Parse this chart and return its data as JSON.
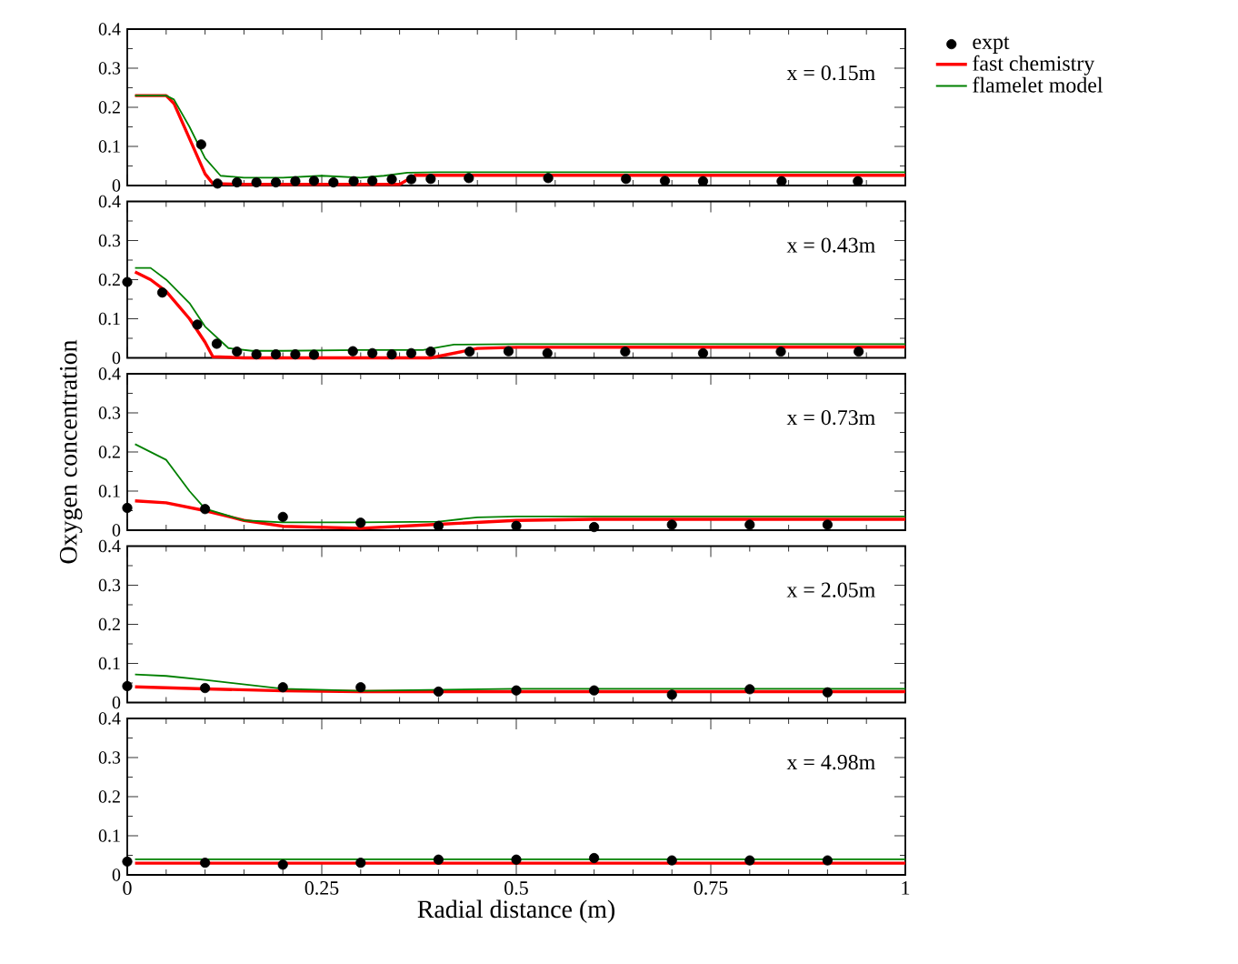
{
  "chart_data": [
    {
      "type": "line",
      "annotations": [
        "x = 0.15m"
      ],
      "xlim": [
        0,
        1
      ],
      "ylim": [
        0,
        0.4
      ],
      "xticks": [
        0,
        0.25,
        0.5,
        0.75,
        1
      ],
      "yticks": [
        0,
        0.1,
        0.2,
        0.3,
        0.4
      ],
      "tick_labels": "y",
      "legend": "top right",
      "series": [
        {
          "name": "expt",
          "type": "scatter",
          "marker": "circle",
          "color": "#000000",
          "x": [
            0.095,
            0.116,
            0.141,
            0.166,
            0.191,
            0.216,
            0.24,
            0.265,
            0.291,
            0.315,
            0.34,
            0.365,
            0.39,
            0.439,
            0.541,
            0.641,
            0.691,
            0.74,
            0.841,
            0.939
          ],
          "values": [
            0.105,
            0.005,
            0.008,
            0.008,
            0.008,
            0.011,
            0.012,
            0.008,
            0.011,
            0.012,
            0.016,
            0.016,
            0.017,
            0.019,
            0.019,
            0.017,
            0.012,
            0.011,
            0.011,
            0.011
          ]
        },
        {
          "name": "fast chemistry",
          "type": "line",
          "color": "#ff0000",
          "x": [
            0.01,
            0.03,
            0.05,
            0.06,
            0.08,
            0.1,
            0.11,
            0.15,
            0.2,
            0.3,
            0.35,
            0.37,
            0.5,
            1
          ],
          "values": [
            0.23,
            0.23,
            0.23,
            0.21,
            0.12,
            0.03,
            0.005,
            0.003,
            0.003,
            0.003,
            0.003,
            0.026,
            0.026,
            0.026
          ]
        },
        {
          "name": "flamelet model",
          "type": "line",
          "color": "#008000",
          "x": [
            0.01,
            0.03,
            0.05,
            0.06,
            0.08,
            0.1,
            0.12,
            0.15,
            0.2,
            0.25,
            0.3,
            0.33,
            0.36,
            0.4,
            0.5,
            1
          ],
          "values": [
            0.23,
            0.23,
            0.23,
            0.22,
            0.15,
            0.07,
            0.025,
            0.02,
            0.02,
            0.025,
            0.02,
            0.025,
            0.033,
            0.034,
            0.034,
            0.034
          ]
        }
      ]
    },
    {
      "type": "line",
      "annotations": [
        "x = 0.43m"
      ],
      "xlim": [
        0,
        1
      ],
      "ylim": [
        0,
        0.4
      ],
      "xticks": [
        0,
        0.25,
        0.5,
        0.75,
        1
      ],
      "yticks": [
        0,
        0.1,
        0.2,
        0.3,
        0.4
      ],
      "tick_labels": "y",
      "series": [
        {
          "type": "scatter",
          "marker": "circle",
          "color": "#000000",
          "x": [
            0,
            0.045,
            0.09,
            0.115,
            0.141,
            0.166,
            0.191,
            0.216,
            0.24,
            0.29,
            0.315,
            0.34,
            0.365,
            0.39,
            0.44,
            0.49,
            0.54,
            0.64,
            0.74,
            0.84,
            0.94
          ],
          "values": [
            0.194,
            0.167,
            0.085,
            0.036,
            0.016,
            0.009,
            0.009,
            0.009,
            0.008,
            0.017,
            0.012,
            0.009,
            0.012,
            0.016,
            0.016,
            0.017,
            0.012,
            0.016,
            0.012,
            0.016,
            0.016
          ]
        },
        {
          "type": "line",
          "color": "#ff0000",
          "x": [
            0.01,
            0.03,
            0.05,
            0.08,
            0.1,
            0.11,
            0.15,
            0.3,
            0.39,
            0.45,
            0.5,
            1
          ],
          "values": [
            0.22,
            0.2,
            0.17,
            0.1,
            0.04,
            0.003,
            0.0,
            0.0,
            0.0,
            0.024,
            0.027,
            0.028
          ]
        },
        {
          "type": "line",
          "color": "#008000",
          "x": [
            0.01,
            0.03,
            0.05,
            0.08,
            0.1,
            0.13,
            0.16,
            0.2,
            0.3,
            0.38,
            0.42,
            0.5,
            1
          ],
          "values": [
            0.23,
            0.23,
            0.2,
            0.14,
            0.08,
            0.025,
            0.018,
            0.018,
            0.02,
            0.02,
            0.034,
            0.035,
            0.035
          ]
        }
      ]
    },
    {
      "type": "line",
      "annotations": [
        "x = 0.73m"
      ],
      "ylabel": "Oxygen concentration",
      "xlim": [
        0,
        1
      ],
      "ylim": [
        0,
        0.4
      ],
      "xticks": [
        0,
        0.25,
        0.5,
        0.75,
        1
      ],
      "yticks": [
        0,
        0.1,
        0.2,
        0.3,
        0.4
      ],
      "tick_labels": "y",
      "series": [
        {
          "type": "scatter",
          "marker": "circle",
          "color": "#000000",
          "x": [
            0,
            0.1,
            0.2,
            0.3,
            0.4,
            0.5,
            0.6,
            0.7,
            0.8,
            0.9
          ],
          "values": [
            0.057,
            0.054,
            0.034,
            0.019,
            0.011,
            0.011,
            0.008,
            0.014,
            0.014,
            0.014
          ]
        },
        {
          "type": "line",
          "color": "#ff0000",
          "x": [
            0.01,
            0.05,
            0.1,
            0.15,
            0.2,
            0.3,
            0.4,
            0.5,
            0.6,
            1
          ],
          "values": [
            0.075,
            0.07,
            0.05,
            0.025,
            0.01,
            0.005,
            0.015,
            0.025,
            0.028,
            0.028
          ]
        },
        {
          "type": "line",
          "color": "#008000",
          "x": [
            0.01,
            0.05,
            0.08,
            0.1,
            0.15,
            0.2,
            0.3,
            0.4,
            0.45,
            0.5,
            1
          ],
          "values": [
            0.22,
            0.18,
            0.1,
            0.055,
            0.025,
            0.02,
            0.02,
            0.022,
            0.033,
            0.035,
            0.035
          ]
        }
      ]
    },
    {
      "type": "line",
      "annotations": [
        "x = 2.05m"
      ],
      "xlim": [
        0,
        1
      ],
      "ylim": [
        0,
        0.4
      ],
      "xticks": [
        0,
        0.25,
        0.5,
        0.75,
        1
      ],
      "yticks": [
        0,
        0.1,
        0.2,
        0.3,
        0.4
      ],
      "tick_labels": "y",
      "series": [
        {
          "type": "scatter",
          "marker": "circle",
          "color": "#000000",
          "x": [
            0,
            0.1,
            0.2,
            0.3,
            0.4,
            0.5,
            0.6,
            0.7,
            0.8,
            0.9
          ],
          "values": [
            0.042,
            0.037,
            0.039,
            0.039,
            0.028,
            0.031,
            0.031,
            0.02,
            0.034,
            0.026
          ]
        },
        {
          "type": "line",
          "color": "#ff0000",
          "x": [
            0.01,
            0.1,
            0.2,
            0.3,
            1
          ],
          "values": [
            0.04,
            0.035,
            0.03,
            0.028,
            0.028
          ]
        },
        {
          "type": "line",
          "color": "#008000",
          "x": [
            0.01,
            0.05,
            0.1,
            0.2,
            0.3,
            0.5,
            1
          ],
          "values": [
            0.072,
            0.068,
            0.058,
            0.035,
            0.03,
            0.035,
            0.035
          ]
        }
      ]
    },
    {
      "type": "line",
      "annotations": [
        "x = 4.98m"
      ],
      "xlabel": "Radial distance (m)",
      "xlim": [
        0,
        1
      ],
      "ylim": [
        0,
        0.4
      ],
      "xticks": [
        0,
        0.25,
        0.5,
        0.75,
        1
      ],
      "yticks": [
        0,
        0.1,
        0.2,
        0.3,
        0.4
      ],
      "series": [
        {
          "type": "scatter",
          "marker": "circle",
          "color": "#000000",
          "x": [
            0,
            0.1,
            0.2,
            0.3,
            0.4,
            0.5,
            0.6,
            0.7,
            0.8,
            0.9
          ],
          "values": [
            0.034,
            0.031,
            0.026,
            0.031,
            0.039,
            0.039,
            0.043,
            0.037,
            0.037,
            0.037
          ]
        },
        {
          "type": "line",
          "color": "#ff0000",
          "x": [
            0.01,
            1
          ],
          "values": [
            0.03,
            0.03
          ]
        },
        {
          "type": "line",
          "color": "#008000",
          "x": [
            0.01,
            1
          ],
          "values": [
            0.04,
            0.04
          ]
        }
      ]
    }
  ]
}
